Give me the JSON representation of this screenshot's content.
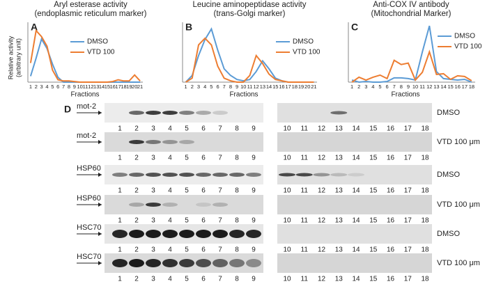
{
  "chart_data": [
    {
      "type": "line",
      "panel": "A",
      "title": [
        "Aryl esterase activity",
        "(endoplasmic reticulum marker)"
      ],
      "ylabel": [
        "Relative activity",
        "(arbitrary unit)"
      ],
      "xlabel": "Fractions",
      "categories": [
        "1",
        "2",
        "3",
        "4",
        "5",
        "6",
        "7",
        "8",
        "9",
        "10",
        "11",
        "12",
        "13",
        "14",
        "15",
        "16",
        "17",
        "18",
        "19",
        "20",
        "21"
      ],
      "ylim": [
        0,
        5
      ],
      "series": [
        {
          "name": "DMSO",
          "color": "#5b9bd5",
          "values": [
            0.5,
            2.0,
            3.6,
            2.8,
            1.5,
            0.4,
            0,
            0,
            0,
            0,
            0,
            0,
            0,
            0,
            0,
            0,
            0,
            0,
            0,
            0,
            0
          ]
        },
        {
          "name": "VTD 100",
          "color": "#ed7d31",
          "values": [
            1.6,
            4.3,
            3.8,
            3.0,
            1.0,
            0.2,
            0.1,
            0.1,
            0.05,
            0,
            0,
            0,
            0,
            0,
            0,
            0.05,
            0.2,
            0.1,
            0.1,
            0.6,
            0.1
          ]
        }
      ]
    },
    {
      "type": "line",
      "panel": "B",
      "title": [
        "Leucine aminopeptidase activity",
        "(trans-Golgi marker)"
      ],
      "xlabel": "Fractions",
      "categories": [
        "1",
        "2",
        "3",
        "4",
        "5",
        "6",
        "7",
        "8",
        "9",
        "10",
        "11",
        "12",
        "13",
        "14",
        "15",
        "16",
        "17",
        "18",
        "19",
        "20",
        "21"
      ],
      "ylim": [
        0,
        4.5
      ],
      "series": [
        {
          "name": "DMSO",
          "color": "#5b9bd5",
          "values": [
            0,
            0.5,
            2.0,
            3.2,
            4.0,
            2.4,
            1.0,
            0.5,
            0.2,
            0.1,
            0.2,
            0.8,
            1.6,
            1.0,
            0.3,
            0.1,
            0,
            0,
            0,
            0,
            0
          ]
        },
        {
          "name": "VTD 100",
          "color": "#ed7d31",
          "values": [
            0,
            0.3,
            2.8,
            3.3,
            2.8,
            1.2,
            0.3,
            0.1,
            0,
            0,
            0.5,
            2.0,
            1.4,
            0.6,
            0.2,
            0.1,
            0,
            0,
            0,
            0,
            0
          ]
        }
      ]
    },
    {
      "type": "line",
      "panel": "C",
      "title": [
        "Anti-COX IV antibody",
        "(Mitochondrial Marker)"
      ],
      "xlabel": "Fractions",
      "categories": [
        "1",
        "2",
        "3",
        "4",
        "5",
        "6",
        "7",
        "8",
        "9",
        "10",
        "11",
        "12",
        "13",
        "14",
        "15",
        "16",
        "17",
        "18"
      ],
      "ylim": [
        0,
        8.5
      ],
      "series": [
        {
          "name": "DMSO",
          "color": "#5b9bd5",
          "values": [
            0.3,
            0,
            0.1,
            0,
            0,
            0.1,
            0.6,
            0.6,
            0.5,
            0.3,
            4.3,
            8.0,
            1.5,
            0.5,
            0.4,
            0.3,
            0.4,
            0
          ]
        },
        {
          "name": "VTD 100",
          "color": "#ed7d31",
          "values": [
            0,
            0.7,
            0.3,
            0.7,
            1.0,
            0.5,
            3.1,
            2.5,
            2.7,
            0.3,
            1.4,
            4.3,
            1.1,
            1.2,
            0.4,
            0.9,
            0.8,
            0.2
          ]
        }
      ]
    }
  ],
  "blots": {
    "panel": "D",
    "left_lanes": [
      "1",
      "2",
      "3",
      "4",
      "5",
      "6",
      "7",
      "8",
      "9"
    ],
    "right_lanes": [
      "10",
      "11",
      "12",
      "13",
      "14",
      "15",
      "16",
      "17",
      "18"
    ],
    "rows": [
      {
        "protein": "mot-2",
        "condition": "DMSO"
      },
      {
        "protein": "mot-2",
        "condition": "VTD 100 μm"
      },
      {
        "protein": "HSP60",
        "condition": "DMSO"
      },
      {
        "protein": "HSP60",
        "condition": "VTD 100 μm"
      },
      {
        "protein": "HSC70",
        "condition": "DMSO"
      },
      {
        "protein": "HSC70",
        "condition": "VTD 100 μm"
      }
    ]
  }
}
